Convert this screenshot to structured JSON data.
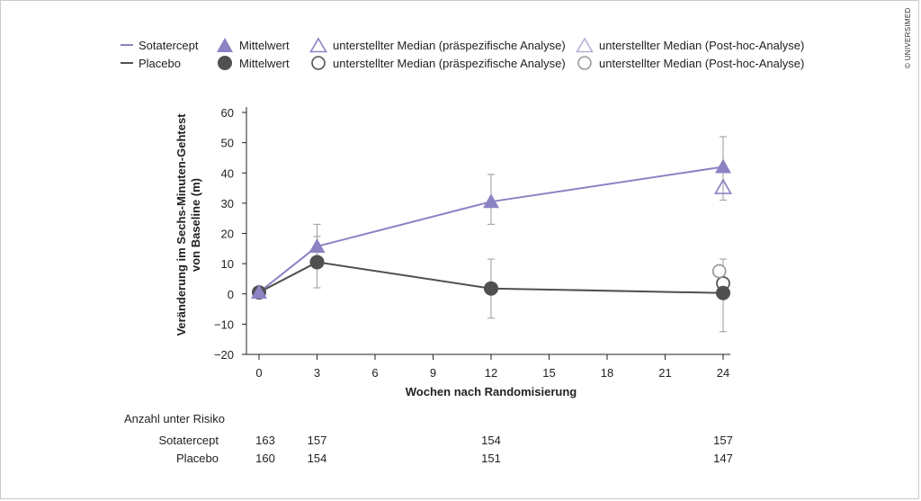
{
  "copyright": "© UNIVERSIMED",
  "legend": {
    "sotatercept_line": "Sotatercept",
    "placebo_line": "Placebo",
    "mean_sota": "Mittelwert",
    "mean_placebo": "Mittelwert",
    "median_pre_sota": "unterstellter Median (präspezifische Analyse)",
    "median_pre_placebo": "unterstellter Median (präspezifische Analyse)",
    "median_post_sota": "unterstellter Median (Post-hoc-Analyse)",
    "median_post_placebo": "unterstellter Median (Post-hoc-Analyse)"
  },
  "colors": {
    "sotatercept": "#8b83c3",
    "sotatercept_light": "#b5b0d8",
    "placebo": "#505050",
    "placebo_light": "#999999",
    "errorbar": "#aaaaaa"
  },
  "chart_data": {
    "type": "line",
    "xlabel": "Wochen nach Randomisierung",
    "ylabel_line1": "Veränderung im Sechs-Minuten-Gehtest",
    "ylabel_line2": "von Baseline (m)",
    "xlim": [
      0,
      24
    ],
    "ylim": [
      -20,
      60
    ],
    "xticks": [
      0,
      3,
      6,
      9,
      12,
      15,
      18,
      21,
      24
    ],
    "yticks": [
      60,
      50,
      40,
      30,
      20,
      10,
      0,
      -10,
      -20
    ],
    "ytick_labels": [
      "60",
      "50",
      "40",
      "30",
      "20",
      "10",
      "0",
      "−10",
      "−20"
    ],
    "series": [
      {
        "name": "Sotatercept",
        "marker": "triangle",
        "x": [
          0,
          3,
          12,
          24
        ],
        "y": [
          0.5,
          15.7,
          30.5,
          42
        ],
        "err_low": [
          0.5,
          8.5,
          23,
          31
        ],
        "err_high": [
          0.5,
          23,
          39.5,
          52
        ]
      },
      {
        "name": "Placebo",
        "marker": "circle",
        "x": [
          0,
          3,
          12,
          24
        ],
        "y": [
          0.5,
          10.5,
          1.8,
          0.3
        ],
        "err_low": [
          0.5,
          2,
          -8,
          -12.5
        ],
        "err_high": [
          0.5,
          19,
          11.5,
          11.5
        ]
      }
    ],
    "medians": [
      {
        "series": "Sotatercept",
        "analysis": "präspezifische Analyse",
        "x": 24,
        "y": 35.3
      },
      {
        "series": "Placebo",
        "analysis": "präspezifische Analyse",
        "x": 24,
        "y": 3.5
      },
      {
        "series": "Placebo",
        "analysis": "Post-hoc-Analyse",
        "x": 23.8,
        "y": 7.5
      }
    ]
  },
  "risk_table": {
    "title": "Anzahl unter Risiko",
    "rows": [
      {
        "label": "Sotatercept",
        "values": [
          "163",
          "157",
          "154",
          "157"
        ]
      },
      {
        "label": "Placebo",
        "values": [
          "160",
          "154",
          "151",
          "147"
        ]
      }
    ],
    "weeks": [
      0,
      3,
      12,
      24
    ]
  }
}
